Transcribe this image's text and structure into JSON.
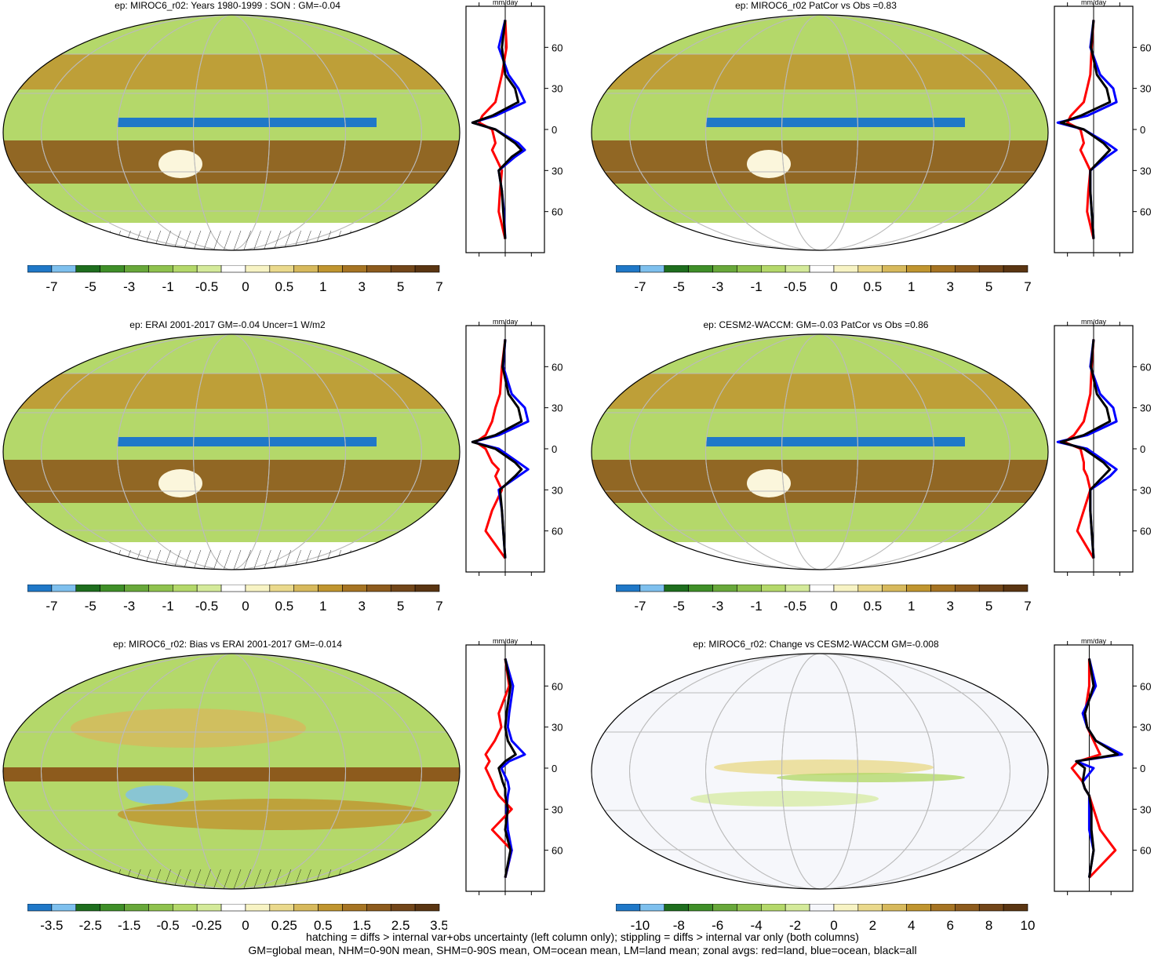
{
  "footer": {
    "line1": "hatching = diffs > internal var+obs uncertainty (left column only); stippling = diffs > internal var only (both columns)",
    "line2": "GM=global mean, NHM=0-90N mean, SHM=0-90S mean, OM=ocean mean, LM=land mean; zonal avgs: red=land, blue=ocean, black=all"
  },
  "colors": {
    "land": "#ff0000",
    "ocean": "#0000ff",
    "all": "#000000",
    "scale": [
      "#1f78c8",
      "#7ec0ee",
      "#1e6e1e",
      "#3f8f28",
      "#68a83a",
      "#8fc24e",
      "#b4d86a",
      "#d4ea9a",
      "#ffffff",
      "#f7f3c4",
      "#ead98c",
      "#d7b95c",
      "#c0952f",
      "#a67423",
      "#8d5b1d",
      "#724619",
      "#5a3512"
    ],
    "change_scale": [
      "#1f78c8",
      "#7ec0ee",
      "#1e6e1e",
      "#3f8f28",
      "#68a83a",
      "#8fc24e",
      "#b4d86a",
      "#d4ea9a",
      "#f6f7fb",
      "#f7f3c4",
      "#ead98c",
      "#d7b95c",
      "#c0952f",
      "#a67423",
      "#8d5b1d",
      "#724619",
      "#5a3512"
    ]
  },
  "panels": [
    {
      "title": "ep: MIROC6_r02: Years 1980-1999 : SON : GM=-0.04",
      "cbar_labels": [
        "-7",
        "-5",
        "-3",
        "-1",
        "-0.5",
        "0",
        "0.5",
        "1",
        "3",
        "5",
        "7"
      ],
      "zonal_unit": "mm/day",
      "zonal_xticks": [
        "-4.0",
        "0.0",
        "4.0"
      ],
      "zonal_xlim": [
        -6,
        6
      ],
      "lat_labels": [
        "60N",
        "30N",
        "0",
        "30S",
        "60S"
      ],
      "bg": "green"
    },
    {
      "title": "ep: MIROC6_r02 PatCor vs Obs =0.83",
      "cbar_labels": [
        "-7",
        "-5",
        "-3",
        "-1",
        "-0.5",
        "0",
        "0.5",
        "1",
        "3",
        "5",
        "7"
      ],
      "zonal_unit": "mm/day",
      "zonal_xticks": [
        "-4.0",
        "0.0",
        "4.0"
      ],
      "zonal_xlim": [
        -6,
        6
      ],
      "lat_labels": [
        "60N",
        "30N",
        "0",
        "30S",
        "60S"
      ],
      "bg": "green"
    },
    {
      "title": "ep: ERAI 2001-2017 GM=-0.04 Uncer=1 W/m2",
      "cbar_labels": [
        "-7",
        "-5",
        "-3",
        "-1",
        "-0.5",
        "0",
        "0.5",
        "1",
        "3",
        "5",
        "7"
      ],
      "zonal_unit": "mm/day",
      "zonal_xticks": [
        "-4.0",
        "0.0",
        "4.0"
      ],
      "zonal_xlim": [
        -6,
        6
      ],
      "lat_labels": [
        "60N",
        "30N",
        "0",
        "30S",
        "60S"
      ],
      "bg": "green"
    },
    {
      "title": "ep: CESM2-WACCM: GM=-0.03 PatCor vs Obs =0.86",
      "cbar_labels": [
        "-7",
        "-5",
        "-3",
        "-1",
        "-0.5",
        "0",
        "0.5",
        "1",
        "3",
        "5",
        "7"
      ],
      "zonal_unit": "mm/day",
      "zonal_xticks": [
        "-4.0",
        "0.0",
        "4.0"
      ],
      "zonal_xlim": [
        -6,
        6
      ],
      "lat_labels": [
        "60N",
        "30N",
        "0",
        "30S",
        "60S"
      ],
      "bg": "green"
    },
    {
      "title": "ep: MIROC6_r02: Bias vs ERAI 2001-2017  GM=-0.014",
      "cbar_labels": [
        "-3.5",
        "-2.5",
        "-1.5",
        "-0.5",
        "-0.25",
        "0",
        "0.25",
        "0.5",
        "1.5",
        "2.5",
        "3.5"
      ],
      "zonal_unit": "mm/day",
      "zonal_xticks": [
        "-2.0",
        "0.0",
        "2.0"
      ],
      "zonal_xlim": [
        -3,
        3
      ],
      "lat_labels": [
        "60N",
        "30N",
        "0",
        "30S",
        "60S"
      ],
      "bg": "bias"
    },
    {
      "title": "ep: MIROC6_r02: Change vs CESM2-WACCM GM=-0.008",
      "cbar_labels": [
        "-10",
        "-8",
        "-6",
        "-4",
        "-2",
        "0",
        "2",
        "4",
        "6",
        "8",
        "10"
      ],
      "zonal_unit": "mm/day",
      "zonal_xticks": [
        "-1.0",
        "1.0"
      ],
      "zonal_xlim": [
        -1.6,
        2.0
      ],
      "lat_labels": [
        "60N",
        "30N",
        "0",
        "30S",
        "60S"
      ],
      "bg": "white"
    }
  ],
  "chart_data": [
    {
      "type": "line",
      "title": "ep: MIROC6_r02: Years 1980-1999 : SON : GM=-0.04",
      "lat": [
        80,
        60,
        40,
        30,
        20,
        10,
        5,
        0,
        -10,
        -15,
        -20,
        -30,
        -45,
        -60,
        -80
      ],
      "series": [
        {
          "name": "land",
          "values": [
            0,
            0.2,
            -0.5,
            -1,
            -1.5,
            -3.5,
            -4,
            -2,
            -1.5,
            -2,
            -1.5,
            -0.5,
            -0.8,
            -1,
            0
          ]
        },
        {
          "name": "ocean",
          "values": [
            0,
            -1,
            0.5,
            2,
            3,
            -1.5,
            -5,
            -1.5,
            2,
            3,
            1.5,
            -1,
            -0.5,
            -0.2,
            0
          ]
        },
        {
          "name": "all",
          "values": [
            0,
            -0.5,
            0,
            1.5,
            2,
            -2,
            -5,
            -1.5,
            1.5,
            2.5,
            1,
            -1,
            -0.5,
            -0.3,
            0
          ]
        }
      ]
    },
    {
      "type": "line",
      "title": "ep: MIROC6_r02 PatCor vs Obs =0.83",
      "lat": [
        80,
        60,
        40,
        30,
        20,
        10,
        5,
        0,
        -10,
        -15,
        -20,
        -30,
        -45,
        -60,
        -80
      ],
      "series": [
        {
          "name": "land",
          "values": [
            0,
            -0.3,
            -0.5,
            -1,
            -1.5,
            -3.5,
            -4,
            -2,
            -1.5,
            -2,
            -1.5,
            -0.5,
            -0.8,
            -1,
            0
          ]
        },
        {
          "name": "ocean",
          "values": [
            0,
            -0.5,
            1,
            3,
            3.5,
            -1,
            -5.5,
            -1.5,
            2,
            3.5,
            2,
            -0.5,
            -0.5,
            -0.3,
            0
          ]
        },
        {
          "name": "all",
          "values": [
            0,
            -0.4,
            0.5,
            2,
            2.5,
            -2,
            -5,
            -1.5,
            1.5,
            2.5,
            1.5,
            -0.5,
            -0.5,
            -0.3,
            0
          ]
        }
      ]
    },
    {
      "type": "line",
      "title": "ep: ERAI 2001-2017 GM=-0.04 Uncer=1 W/m2",
      "lat": [
        80,
        60,
        40,
        30,
        20,
        10,
        5,
        0,
        -10,
        -15,
        -20,
        -30,
        -45,
        -60,
        -80
      ],
      "series": [
        {
          "name": "land",
          "values": [
            0,
            -0.5,
            -0.8,
            -1.5,
            -2,
            -3,
            -4.5,
            -3,
            -2,
            -1,
            -1.5,
            -0.5,
            -2,
            -3,
            0
          ]
        },
        {
          "name": "ocean",
          "values": [
            0,
            -0.3,
            1,
            3,
            3.5,
            -1,
            -5,
            -1,
            2,
            3.5,
            2,
            -1,
            -0.5,
            -0.3,
            0
          ]
        },
        {
          "name": "all",
          "values": [
            0,
            -0.4,
            0.5,
            2,
            2.5,
            -1.5,
            -5,
            -1.5,
            1.5,
            2.5,
            1.5,
            -0.8,
            -0.5,
            -0.3,
            0
          ]
        }
      ]
    },
    {
      "type": "line",
      "title": "ep: CESM2-WACCM: GM=-0.03 PatCor vs Obs =0.86",
      "lat": [
        80,
        60,
        40,
        30,
        20,
        10,
        5,
        0,
        -10,
        -15,
        -20,
        -30,
        -45,
        -60,
        -80
      ],
      "series": [
        {
          "name": "land",
          "values": [
            0,
            -0.3,
            -0.5,
            -1,
            -1.5,
            -3,
            -4.5,
            -2,
            -1.5,
            -1.5,
            -1,
            -0.5,
            -1.5,
            -2.5,
            0
          ]
        },
        {
          "name": "ocean",
          "values": [
            0,
            -0.5,
            1,
            3,
            3.5,
            -1,
            -5.5,
            -1,
            2,
            3.5,
            2.5,
            -0.5,
            -0.5,
            -0.3,
            0
          ]
        },
        {
          "name": "all",
          "values": [
            0,
            -0.4,
            0.5,
            2,
            2.5,
            -1.5,
            -5,
            -1.5,
            1.5,
            2.5,
            1.5,
            -0.5,
            -0.5,
            -0.3,
            0
          ]
        }
      ]
    },
    {
      "type": "line",
      "title": "ep: MIROC6_r02: Bias vs ERAI 2001-2017  GM=-0.014",
      "lat": [
        80,
        60,
        40,
        30,
        20,
        10,
        5,
        0,
        -10,
        -15,
        -20,
        -30,
        -45,
        -60,
        -80
      ],
      "series": [
        {
          "name": "land",
          "values": [
            0,
            0.3,
            -0.5,
            -0.3,
            -0.8,
            -1.5,
            -1.2,
            -1.5,
            -1,
            -0.8,
            -0.5,
            0.5,
            -1,
            0.5,
            0
          ]
        },
        {
          "name": "ocean",
          "values": [
            0,
            0.6,
            0.3,
            0.2,
            0.5,
            1.5,
            0.3,
            -0.3,
            0.2,
            0.3,
            0.2,
            0.1,
            0.2,
            0.5,
            0
          ]
        },
        {
          "name": "all",
          "values": [
            0,
            0.4,
            0.1,
            0,
            0.2,
            0.8,
            0,
            -0.5,
            -0.2,
            0,
            0,
            0.2,
            0,
            0.4,
            0
          ]
        }
      ]
    },
    {
      "type": "line",
      "title": "ep: MIROC6_r02: Change vs CESM2-WACCM GM=-0.008",
      "lat": [
        80,
        60,
        40,
        30,
        20,
        10,
        5,
        0,
        -10,
        -15,
        -20,
        -30,
        -45,
        -60,
        -80
      ],
      "series": [
        {
          "name": "land",
          "values": [
            0,
            0,
            -0.2,
            -0.1,
            0.2,
            0.5,
            -0.5,
            -0.8,
            -0.3,
            -0.2,
            0,
            0.2,
            0.5,
            1.2,
            0
          ]
        },
        {
          "name": "ocean",
          "values": [
            0,
            0.3,
            -0.3,
            -0.1,
            0.3,
            1.5,
            -0.6,
            0.2,
            -0.3,
            -0.2,
            0,
            0,
            0,
            0.2,
            0
          ]
        },
        {
          "name": "all",
          "values": [
            0,
            0.2,
            -0.2,
            -0.1,
            0.3,
            1.3,
            -0.6,
            -0.2,
            -0.3,
            -0.2,
            0,
            0.1,
            0.1,
            0.2,
            0
          ]
        }
      ]
    }
  ]
}
